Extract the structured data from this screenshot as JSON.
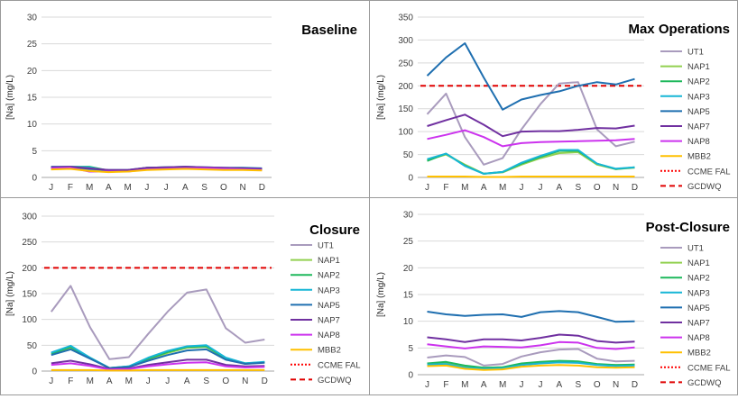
{
  "months": [
    "J",
    "F",
    "M",
    "A",
    "M",
    "J",
    "J",
    "A",
    "S",
    "O",
    "N",
    "D"
  ],
  "legend_entries": [
    "UT1",
    "NAP1",
    "NAP2",
    "NAP3",
    "NAP5",
    "NAP7",
    "NAP8",
    "MBB2",
    "CCME FAL",
    "GCDWQ"
  ],
  "series_colors": {
    "UT1": "#a99bbd",
    "NAP1": "#92d050",
    "NAP2": "#1eb85c",
    "NAP3": "#17b6d6",
    "NAP5": "#1f6fb0",
    "NAP7": "#7030a0",
    "NAP8": "#cc33ee",
    "MBB2": "#ffc000",
    "CCME FAL": "#ff0000",
    "GCDWQ": "#e00000"
  },
  "chart_data": [
    {
      "type": "line",
      "title": "Baseline",
      "ylabel": "[Na]  (mg/L)",
      "xlabel": "",
      "categories": [
        "J",
        "F",
        "M",
        "A",
        "M",
        "J",
        "J",
        "A",
        "S",
        "O",
        "N",
        "D"
      ],
      "ylim": [
        0,
        30
      ],
      "yticks": [
        0,
        5,
        10,
        15,
        20,
        25,
        30
      ],
      "grid": true,
      "legend": "right",
      "series": [
        {
          "name": "UT1",
          "values": [
            1.6,
            1.8,
            1.5,
            1.2,
            1.2,
            1.6,
            1.7,
            1.9,
            1.8,
            1.7,
            1.6,
            1.6
          ]
        },
        {
          "name": "NAP1",
          "values": [
            1.8,
            1.9,
            1.6,
            1.3,
            1.3,
            1.7,
            1.8,
            1.9,
            1.8,
            1.7,
            1.7,
            1.6
          ]
        },
        {
          "name": "NAP2",
          "values": [
            1.9,
            2.0,
            2.0,
            1.3,
            1.3,
            1.8,
            1.9,
            1.9,
            1.8,
            1.7,
            1.7,
            1.6
          ]
        },
        {
          "name": "NAP3",
          "values": [
            1.8,
            2.0,
            1.9,
            1.2,
            1.3,
            1.7,
            1.8,
            1.8,
            1.7,
            1.6,
            1.6,
            1.5
          ]
        },
        {
          "name": "NAP5",
          "values": [
            2.0,
            2.0,
            1.6,
            1.4,
            1.4,
            1.8,
            1.9,
            2.0,
            1.9,
            1.8,
            1.8,
            1.7
          ]
        },
        {
          "name": "NAP7",
          "values": [
            1.9,
            2.0,
            1.7,
            1.4,
            1.4,
            1.8,
            1.9,
            2.0,
            1.9,
            1.8,
            1.7,
            1.6
          ]
        },
        {
          "name": "NAP8",
          "values": [
            1.7,
            1.8,
            1.1,
            1.1,
            1.1,
            1.5,
            1.6,
            1.7,
            1.7,
            1.6,
            1.5,
            1.4
          ]
        },
        {
          "name": "MBB2",
          "values": [
            1.5,
            1.6,
            1.2,
            1.0,
            1.1,
            1.4,
            1.5,
            1.6,
            1.5,
            1.4,
            1.4,
            1.3
          ]
        }
      ],
      "reference_lines": []
    },
    {
      "type": "line",
      "title": "Max Operations",
      "ylabel": "[Na]  (mg/L)",
      "xlabel": "",
      "categories": [
        "J",
        "F",
        "M",
        "A",
        "M",
        "J",
        "J",
        "A",
        "S",
        "O",
        "N",
        "D"
      ],
      "ylim": [
        0,
        350
      ],
      "yticks": [
        0,
        50,
        100,
        150,
        200,
        250,
        300,
        350
      ],
      "grid": true,
      "legend": "right",
      "series": [
        {
          "name": "UT1",
          "values": [
            138,
            183,
            88,
            28,
            42,
            105,
            160,
            205,
            208,
            105,
            68,
            78
          ]
        },
        {
          "name": "NAP1",
          "values": [
            38,
            50,
            28,
            8,
            11,
            28,
            42,
            53,
            55,
            28,
            18,
            21
          ]
        },
        {
          "name": "NAP2",
          "values": [
            36,
            52,
            26,
            8,
            12,
            30,
            45,
            58,
            58,
            30,
            18,
            22
          ]
        },
        {
          "name": "NAP3",
          "values": [
            40,
            52,
            25,
            8,
            12,
            32,
            47,
            60,
            60,
            30,
            19,
            22
          ]
        },
        {
          "name": "NAP5",
          "values": [
            222,
            262,
            293,
            218,
            148,
            170,
            180,
            188,
            200,
            208,
            203,
            215
          ]
        },
        {
          "name": "NAP7",
          "values": [
            112,
            125,
            137,
            115,
            90,
            100,
            101,
            101,
            104,
            108,
            107,
            113
          ]
        },
        {
          "name": "NAP8",
          "values": [
            84,
            93,
            103,
            88,
            68,
            75,
            77,
            78,
            79,
            80,
            81,
            84
          ]
        },
        {
          "name": "MBB2",
          "values": [
            2,
            2,
            2,
            1,
            1,
            2,
            2,
            2,
            2,
            2,
            2,
            2
          ]
        }
      ],
      "reference_lines": [
        {
          "name": "CCME FAL",
          "value": null
        },
        {
          "name": "GCDWQ",
          "value": 200
        }
      ]
    },
    {
      "type": "line",
      "title": "Closure",
      "ylabel": "[Na]  (mg/L)",
      "xlabel": "",
      "categories": [
        "J",
        "F",
        "M",
        "A",
        "M",
        "J",
        "J",
        "A",
        "S",
        "O",
        "N",
        "D"
      ],
      "ylim": [
        0,
        300
      ],
      "yticks": [
        0,
        50,
        100,
        150,
        200,
        250,
        300
      ],
      "grid": true,
      "legend": "right",
      "series": [
        {
          "name": "UT1",
          "values": [
            115,
            165,
            85,
            23,
            27,
            72,
            115,
            152,
            158,
            83,
            55,
            61
          ]
        },
        {
          "name": "NAP1",
          "values": [
            33,
            45,
            25,
            6,
            8,
            22,
            35,
            45,
            47,
            24,
            14,
            17
          ]
        },
        {
          "name": "NAP2",
          "values": [
            34,
            47,
            26,
            6,
            9,
            24,
            37,
            47,
            48,
            25,
            15,
            17
          ]
        },
        {
          "name": "NAP3",
          "values": [
            36,
            49,
            26,
            6,
            9,
            26,
            39,
            48,
            50,
            26,
            15,
            18
          ]
        },
        {
          "name": "NAP5",
          "values": [
            31,
            42,
            24,
            6,
            8,
            20,
            31,
            40,
            42,
            22,
            14,
            16
          ]
        },
        {
          "name": "NAP7",
          "values": [
            15,
            20,
            13,
            4,
            5,
            12,
            17,
            22,
            22,
            12,
            9,
            10
          ]
        },
        {
          "name": "NAP8",
          "values": [
            12,
            15,
            10,
            3,
            4,
            9,
            13,
            16,
            17,
            9,
            7,
            8
          ]
        },
        {
          "name": "MBB2",
          "values": [
            2,
            2,
            2,
            1,
            1,
            2,
            2,
            2,
            2,
            2,
            2,
            2
          ]
        }
      ],
      "reference_lines": [
        {
          "name": "CCME FAL",
          "value": null
        },
        {
          "name": "GCDWQ",
          "value": 200
        }
      ]
    },
    {
      "type": "line",
      "title": "Post-Closure",
      "ylabel": "[Na]  (mg/L)",
      "xlabel": "",
      "categories": [
        "J",
        "F",
        "M",
        "A",
        "M",
        "J",
        "J",
        "A",
        "S",
        "O",
        "N",
        "D"
      ],
      "ylim": [
        0,
        30
      ],
      "yticks": [
        0,
        5,
        10,
        15,
        20,
        25,
        30
      ],
      "grid": true,
      "legend": "right",
      "series": [
        {
          "name": "UT1",
          "values": [
            3.2,
            3.6,
            3.3,
            1.7,
            2.0,
            3.4,
            4.2,
            4.7,
            4.8,
            3.0,
            2.5,
            2.6
          ]
        },
        {
          "name": "NAP1",
          "values": [
            2.0,
            2.2,
            1.6,
            1.3,
            1.4,
            1.9,
            2.2,
            2.4,
            2.4,
            1.9,
            1.8,
            1.8
          ]
        },
        {
          "name": "NAP2",
          "values": [
            2.1,
            2.4,
            1.7,
            1.3,
            1.4,
            2.1,
            2.4,
            2.6,
            2.5,
            2.0,
            1.8,
            1.9
          ]
        },
        {
          "name": "NAP3",
          "values": [
            1.9,
            2.0,
            1.3,
            1.1,
            1.2,
            1.8,
            2.1,
            2.3,
            2.2,
            1.8,
            1.6,
            1.7
          ]
        },
        {
          "name": "NAP5",
          "values": [
            11.8,
            11.3,
            11.0,
            11.2,
            11.3,
            10.8,
            11.7,
            11.9,
            11.7,
            10.8,
            9.9,
            10.0
          ]
        },
        {
          "name": "NAP7",
          "values": [
            7.0,
            6.6,
            6.1,
            6.6,
            6.6,
            6.4,
            6.9,
            7.5,
            7.3,
            6.3,
            6.0,
            6.2
          ]
        },
        {
          "name": "NAP8",
          "values": [
            5.7,
            5.3,
            4.9,
            5.3,
            5.2,
            5.1,
            5.5,
            6.1,
            6.0,
            5.0,
            4.8,
            5.1
          ]
        },
        {
          "name": "MBB2",
          "values": [
            1.6,
            1.7,
            1.1,
            0.9,
            1.0,
            1.5,
            1.7,
            1.8,
            1.7,
            1.4,
            1.3,
            1.4
          ]
        }
      ],
      "reference_lines": [
        {
          "name": "CCME FAL",
          "value": null
        },
        {
          "name": "GCDWQ",
          "value": null
        }
      ]
    }
  ]
}
